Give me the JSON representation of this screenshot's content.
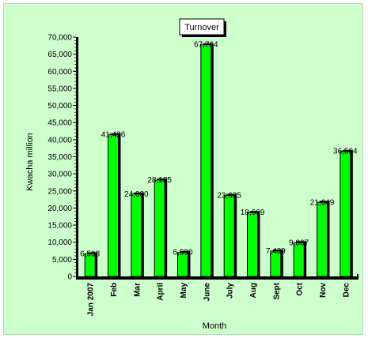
{
  "chart_data": {
    "type": "bar",
    "title": "Turnover",
    "xlabel": "Month",
    "ylabel": "Kwacha million",
    "categories": [
      "Jan 2007",
      "Feb",
      "Mar",
      "April",
      "May",
      "June",
      "July",
      "Aug",
      "Sept",
      "Oct",
      "Nov",
      "Dec"
    ],
    "values": [
      6598,
      41426,
      24080,
      28185,
      6990,
      67764,
      23685,
      18669,
      7409,
      9867,
      21649,
      36564
    ],
    "data_labels": [
      "6,598",
      "41,426",
      "24,080",
      "28,185",
      "6,990",
      "67,764",
      "23,685",
      "18,669",
      "7,409",
      "9,867",
      "21,649",
      "36,564"
    ],
    "ylim": [
      0,
      70000
    ],
    "yticks": [
      0,
      5000,
      10000,
      15000,
      20000,
      25000,
      30000,
      35000,
      40000,
      45000,
      50000,
      55000,
      60000,
      65000,
      70000
    ],
    "ytick_labels": [
      "0",
      "5,000",
      "10,000",
      "15,000",
      "20,000",
      "25,000",
      "30,000",
      "35,000",
      "40,000",
      "45,000",
      "50,000",
      "55,000",
      "60,000",
      "65,000",
      "70,000"
    ],
    "grid": false,
    "legend": "none",
    "colors": {
      "bar": "#00ff00",
      "bar_shadow": "#000000",
      "background": "#ccffcc"
    }
  }
}
